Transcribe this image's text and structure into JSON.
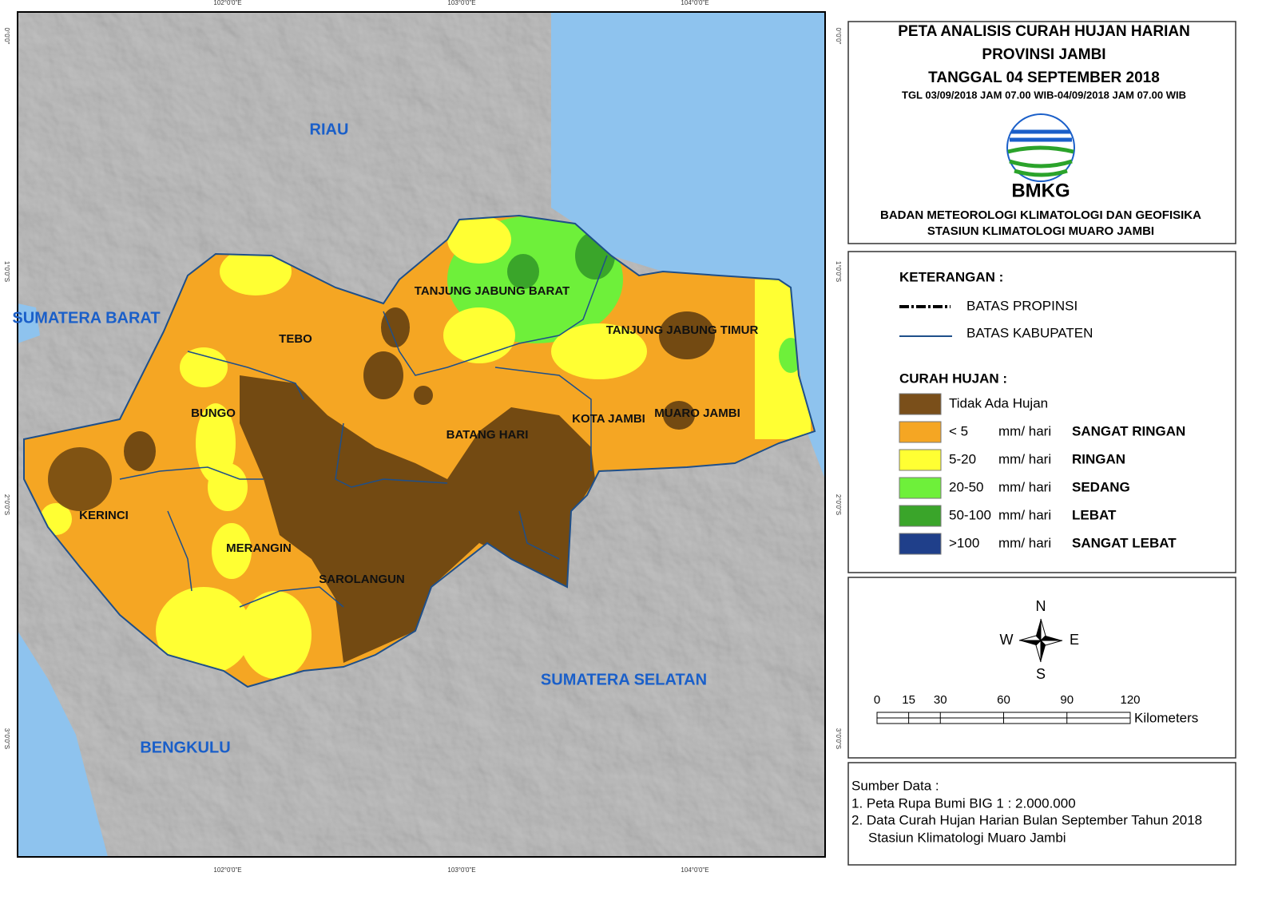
{
  "map": {
    "grid_labels": {
      "top": [
        "102°0'0\"E",
        "103°0'0\"E",
        "104°0'0\"E"
      ],
      "bottom": [
        "102°0'0\"E",
        "103°0'0\"E",
        "104°0'0\"E"
      ],
      "left": [
        "0°0'0\"",
        "1°0'0\"S",
        "2°0'0\"S",
        "3°0'0\"S"
      ],
      "right": [
        "0°0'0\"",
        "1°0'0\"S",
        "2°0'0\"S",
        "3°0'0\"S"
      ]
    },
    "provinces": [
      "RIAU",
      "SUMATERA BARAT",
      "BENGKULU",
      "SUMATERA SELATAN"
    ],
    "regencies": [
      "TANJUNG JABUNG BARAT",
      "TEBO",
      "TANJUNG JABUNG TIMUR",
      "BUNGO",
      "BATANG HARI",
      "KOTA JAMBI",
      "MUARO JAMBI",
      "KERINCI",
      "MERANGIN",
      "SAROLANGUN"
    ]
  },
  "header": {
    "title": [
      "PETA ANALISIS CURAH HUJAN HARIAN",
      "PROVINSI JAMBI",
      "TANGGAL 04 SEPTEMBER 2018"
    ],
    "period": "TGL 03/09/2018 JAM 07.00 WIB-04/09/2018 JAM 07.00 WIB",
    "logo": "BMKG",
    "agency": [
      "BADAN METEOROLOGI KLIMATOLOGI DAN GEOFISIKA",
      "STASIUN KLIMATOLOGI MUARO JAMBI"
    ]
  },
  "legend": {
    "title": "KETERANGAN :",
    "lines": [
      "BATAS PROPINSI",
      "BATAS KABUPATEN"
    ],
    "rain_title": "CURAH HUJAN :",
    "classes": [
      {
        "label": "Tidak Ada Hujan",
        "color": "#7a4f1a"
      },
      {
        "range": "< 5",
        "unit": "mm/ hari",
        "name": "SANGAT RINGAN",
        "color": "#f5a623"
      },
      {
        "range": "5-20",
        "unit": "mm/ hari",
        "name": "RINGAN",
        "color": "#ffff33"
      },
      {
        "range": "20-50",
        "unit": "mm/ hari",
        "name": "SEDANG",
        "color": "#6ef03a"
      },
      {
        "range": "50-100",
        "unit": "mm/ hari",
        "name": "LEBAT",
        "color": "#3aa52a"
      },
      {
        "range": ">100",
        "unit": "mm/ hari",
        "name": "SANGAT LEBAT",
        "color": "#1f3f8a"
      }
    ]
  },
  "compass": [
    "N",
    "W",
    "E",
    "S"
  ],
  "scale": {
    "ticks": [
      0,
      15,
      30,
      60,
      90,
      120
    ],
    "unit": "Kilometers"
  },
  "sources": {
    "title": "Sumber Data :",
    "items": [
      "1. Peta Rupa Bumi BIG 1 : 2.000.000",
      "2. Data Curah Hujan Harian Bulan September Tahun 2018",
      "Stasiun Klimatologi Muaro Jambi"
    ]
  }
}
